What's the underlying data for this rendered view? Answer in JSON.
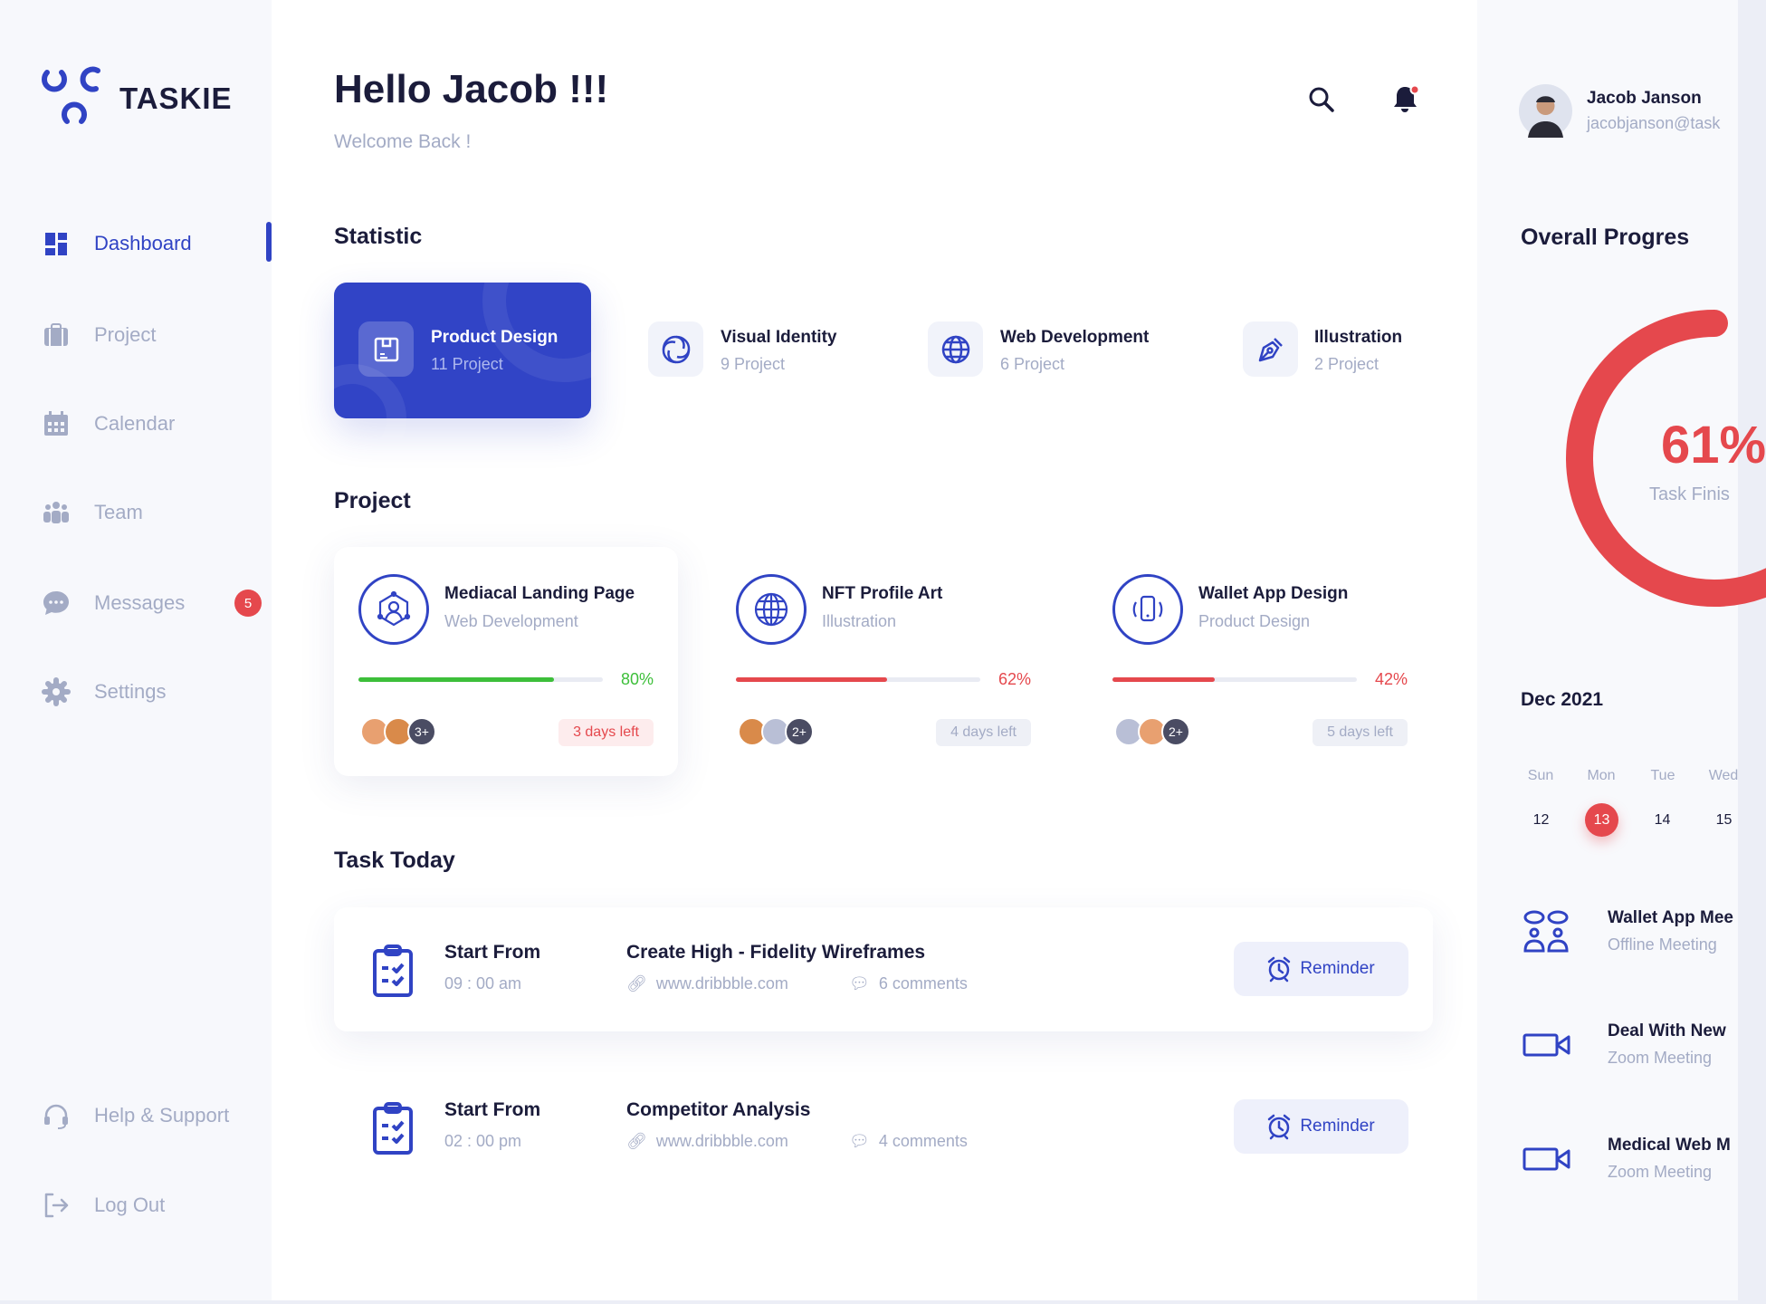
{
  "app": {
    "name": "TASKIE"
  },
  "sidebar": {
    "items": [
      {
        "label": "Dashboard",
        "icon": "grid-icon",
        "active": true
      },
      {
        "label": "Project",
        "icon": "briefcase-icon"
      },
      {
        "label": "Calendar",
        "icon": "calendar-icon"
      },
      {
        "label": "Team",
        "icon": "team-icon"
      },
      {
        "label": "Messages",
        "icon": "chat-icon",
        "badge": "5"
      },
      {
        "label": "Settings",
        "icon": "gear-icon"
      }
    ],
    "bottom": [
      {
        "label": "Help & Support",
        "icon": "headset-icon"
      },
      {
        "label": "Log Out",
        "icon": "logout-icon"
      }
    ]
  },
  "header": {
    "title": "Hello Jacob !!!",
    "subtitle": "Welcome Back !"
  },
  "statistic": {
    "heading": "Statistic",
    "items": [
      {
        "title": "Product Design",
        "sub": "11 Project",
        "icon": "box-icon",
        "active": true
      },
      {
        "title": "Visual Identity",
        "sub": "9 Project",
        "icon": "swirl-icon"
      },
      {
        "title": "Web Development",
        "sub": "6 Project",
        "icon": "globe-icon"
      },
      {
        "title": "Illustration",
        "sub": "2 Project",
        "icon": "pen-tool-icon"
      }
    ]
  },
  "projects": {
    "heading": "Project",
    "items": [
      {
        "title": "Mediacal Landing Page",
        "category": "Web Development",
        "progress": 80,
        "progress_label": "80%",
        "color": "#3dbf3a",
        "extra": "3+",
        "days": "3 days left",
        "urgent": true
      },
      {
        "title": "NFT Profile Art",
        "category": "Illustration",
        "progress": 62,
        "progress_label": "62%",
        "color": "#e5484d",
        "extra": "2+",
        "days": "4 days left"
      },
      {
        "title": "Wallet App Design",
        "category": "Product Design",
        "progress": 42,
        "progress_label": "42%",
        "color": "#e5484d",
        "extra": "2+",
        "days": "5 days left"
      }
    ]
  },
  "tasks": {
    "heading": "Task Today",
    "items": [
      {
        "start_label": "Start From",
        "time": "09 : 00 am",
        "title": "Create High - Fidelity Wireframes",
        "link": "www.dribbble.com",
        "comments": "6 comments",
        "button": "Reminder"
      },
      {
        "start_label": "Start From",
        "time": "02 : 00 pm",
        "title": "Competitor Analysis",
        "link": "www.dribbble.com",
        "comments": "4 comments",
        "button": "Reminder"
      }
    ]
  },
  "user": {
    "name": "Jacob Janson",
    "email": "jacobjanson@task"
  },
  "progress": {
    "heading": "Overall Progres",
    "value": 61,
    "label": "61%",
    "caption": "Task Finis",
    "color": "#e5484d"
  },
  "calendar": {
    "month": "Dec 2021",
    "days": [
      {
        "name": "Sun",
        "date": "12"
      },
      {
        "name": "Mon",
        "date": "13",
        "selected": true
      },
      {
        "name": "Tue",
        "date": "14"
      },
      {
        "name": "Wed",
        "date": "15"
      }
    ]
  },
  "events": [
    {
      "title": "Wallet App Mee",
      "sub": "Offline Meeting",
      "icon": "meeting-icon"
    },
    {
      "title": "Deal With New",
      "sub": "Zoom Meeting",
      "icon": "video-icon"
    },
    {
      "title": "Medical Web M",
      "sub": "Zoom Meeting",
      "icon": "video-icon"
    }
  ],
  "colors": {
    "primary": "#3043c4",
    "danger": "#e5484d",
    "success": "#3dbf3a",
    "muted": "#a3abc5"
  }
}
